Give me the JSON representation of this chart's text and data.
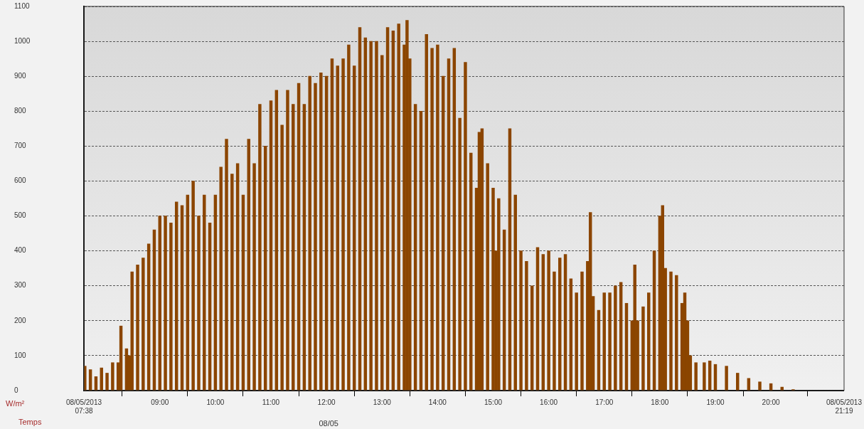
{
  "chart_data": {
    "type": "bar",
    "xlabel": "Temps",
    "ylabel": "W/m²",
    "color": "#8b4500",
    "legend": false,
    "grid": "y",
    "line_style": "dashed",
    "x": [
      7.65,
      7.75,
      7.85,
      7.95,
      8.05,
      8.15,
      8.25,
      8.3,
      8.4,
      8.45,
      8.5,
      8.6,
      8.7,
      8.8,
      8.9,
      9.0,
      9.1,
      9.2,
      9.3,
      9.4,
      9.5,
      9.6,
      9.7,
      9.8,
      9.9,
      10.0,
      10.1,
      10.2,
      10.3,
      10.4,
      10.5,
      10.6,
      10.7,
      10.8,
      10.9,
      11.0,
      11.1,
      11.2,
      11.3,
      11.4,
      11.5,
      11.6,
      11.7,
      11.8,
      11.9,
      12.0,
      12.1,
      12.2,
      12.3,
      12.4,
      12.5,
      12.6,
      12.7,
      12.8,
      12.9,
      13.0,
      13.1,
      13.2,
      13.3,
      13.4,
      13.45,
      13.5,
      13.6,
      13.7,
      13.8,
      13.9,
      14.0,
      14.1,
      14.2,
      14.3,
      14.4,
      14.5,
      14.6,
      14.7,
      14.75,
      14.8,
      14.9,
      15.0,
      15.05,
      15.1,
      15.2,
      15.3,
      15.4,
      15.5,
      15.6,
      15.7,
      15.8,
      15.9,
      16.0,
      16.1,
      16.2,
      16.3,
      16.4,
      16.5,
      16.6,
      16.7,
      16.75,
      16.8,
      16.9,
      17.0,
      17.1,
      17.2,
      17.3,
      17.4,
      17.5,
      17.55,
      17.6,
      17.7,
      17.8,
      17.9,
      18.0,
      18.05,
      18.1,
      18.2,
      18.3,
      18.4,
      18.45,
      18.5,
      18.55,
      18.65,
      18.8,
      18.9,
      19.0,
      19.2,
      19.4,
      19.6,
      19.8,
      20.0,
      20.2,
      20.4
    ],
    "values": [
      70,
      60,
      40,
      65,
      50,
      80,
      80,
      185,
      120,
      100,
      340,
      360,
      380,
      420,
      460,
      500,
      500,
      480,
      540,
      530,
      560,
      600,
      500,
      560,
      480,
      560,
      640,
      720,
      620,
      650,
      560,
      720,
      650,
      820,
      700,
      830,
      860,
      760,
      860,
      820,
      880,
      820,
      900,
      880,
      910,
      900,
      950,
      930,
      950,
      990,
      930,
      1040,
      1010,
      1000,
      1000,
      960,
      1040,
      1030,
      1050,
      990,
      1060,
      950,
      820,
      800,
      1020,
      980,
      990,
      900,
      950,
      980,
      780,
      940,
      680,
      580,
      740,
      750,
      650,
      580,
      400,
      550,
      460,
      750,
      560,
      400,
      370,
      300,
      410,
      390,
      400,
      340,
      380,
      390,
      320,
      280,
      340,
      370,
      510,
      270,
      230,
      280,
      280,
      300,
      310,
      250,
      200,
      360,
      200,
      240,
      280,
      400,
      500,
      530,
      350,
      340,
      330,
      250,
      280,
      200,
      100,
      80,
      80,
      85,
      75,
      70,
      50,
      35,
      25,
      20,
      10,
      3
    ],
    "xlim": [
      7.6333,
      21.3167
    ],
    "xticks": [
      {
        "value": 7.6333,
        "label": "08/05/2013\n07:38"
      },
      {
        "value": 9,
        "label": "09:00"
      },
      {
        "value": 10,
        "label": "10:00"
      },
      {
        "value": 11,
        "label": "11:00"
      },
      {
        "value": 12,
        "label": "12:00"
      },
      {
        "value": 13,
        "label": "13:00"
      },
      {
        "value": 14,
        "label": "14:00"
      },
      {
        "value": 15,
        "label": "15:00"
      },
      {
        "value": 16,
        "label": "16:00"
      },
      {
        "value": 17,
        "label": "17:00"
      },
      {
        "value": 18,
        "label": "18:00"
      },
      {
        "value": 19,
        "label": "19:00"
      },
      {
        "value": 20,
        "label": "20:00"
      },
      {
        "value": 21.3167,
        "label": "08/05/2013\n21:19"
      }
    ],
    "ylim": [
      0,
      1100
    ],
    "yticks": [
      0,
      100,
      200,
      300,
      400,
      500,
      600,
      700,
      800,
      900,
      1000,
      1100
    ],
    "annotations": [
      "08/05"
    ]
  }
}
